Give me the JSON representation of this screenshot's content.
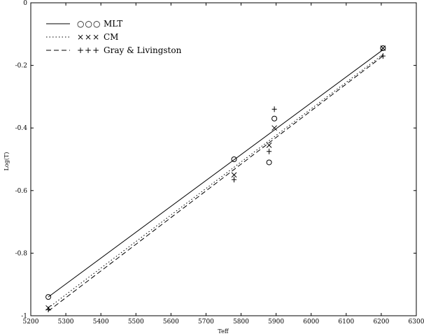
{
  "chart_data": {
    "type": "scatter",
    "title": "",
    "xlabel": "Teff",
    "ylabel": "Log(T)",
    "xlim": [
      5200,
      6300
    ],
    "ylim": [
      -1,
      0
    ],
    "xticks": [
      5200,
      5300,
      5400,
      5500,
      5600,
      5700,
      5800,
      5900,
      6000,
      6100,
      6200,
      6300
    ],
    "yticks": [
      0,
      -0.2,
      -0.4,
      -0.6,
      -0.8,
      -1
    ],
    "xtick_labels": [
      "5200",
      "5300",
      "5400",
      "5500",
      "5600",
      "5700",
      "5800",
      "5900",
      "6000",
      "6100",
      "6200",
      "6300"
    ],
    "ytick_labels": [
      "0",
      "-0.2",
      "-0.4",
      "-0.6",
      "-0.8",
      "-1"
    ],
    "legend_position": "top-left",
    "grid": false,
    "series": [
      {
        "name": "MLT",
        "legend_symbol": "○○○",
        "line_style": "solid",
        "marker": "circle",
        "points": [
          [
            5250,
            -0.94
          ],
          [
            5780,
            -0.5
          ],
          [
            5880,
            -0.51
          ],
          [
            5895,
            -0.37
          ],
          [
            6205,
            -0.145
          ]
        ],
        "line": [
          [
            5250,
            -0.94
          ],
          [
            6205,
            -0.15
          ]
        ]
      },
      {
        "name": "CM",
        "legend_symbol": "×××",
        "line_style": "dotted",
        "marker": "x",
        "points": [
          [
            5250,
            -0.975
          ],
          [
            5780,
            -0.55
          ],
          [
            5880,
            -0.455
          ],
          [
            5895,
            -0.4
          ],
          [
            6205,
            -0.145
          ]
        ],
        "line": [
          [
            5250,
            -0.975
          ],
          [
            6205,
            -0.165
          ]
        ]
      },
      {
        "name": "Gray & Livingston",
        "legend_symbol": "+++",
        "line_style": "dashed",
        "marker": "plus",
        "points": [
          [
            5250,
            -0.98
          ],
          [
            5780,
            -0.565
          ],
          [
            5880,
            -0.475
          ],
          [
            5895,
            -0.34
          ],
          [
            6205,
            -0.17
          ]
        ],
        "line": [
          [
            5250,
            -0.985
          ],
          [
            6205,
            -0.17
          ]
        ]
      }
    ]
  }
}
